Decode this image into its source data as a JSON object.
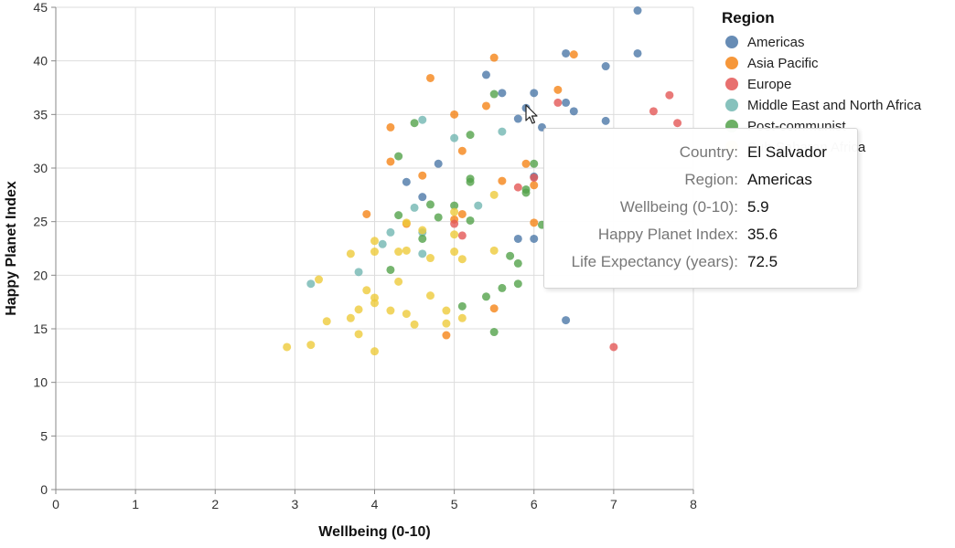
{
  "chart_data": {
    "type": "scatter",
    "xlabel": "Wellbeing (0-10)",
    "ylabel": "Happy Planet Index",
    "xlim": [
      0,
      8
    ],
    "ylim": [
      0,
      45
    ],
    "x_ticks": [
      0,
      1,
      2,
      3,
      4,
      5,
      6,
      7,
      8
    ],
    "y_ticks": [
      0,
      5,
      10,
      15,
      20,
      25,
      30,
      35,
      40,
      45
    ],
    "grid": true,
    "legend": {
      "title": "Region",
      "placement": "top-right",
      "entries": [
        {
          "name": "Americas",
          "color": "#4c78a8"
        },
        {
          "name": "Asia Pacific",
          "color": "#f58518"
        },
        {
          "name": "Europe",
          "color": "#e45756"
        },
        {
          "name": "Middle East and North Africa",
          "color": "#72b7b2"
        },
        {
          "name": "Post-communist",
          "color": "#54a24b"
        },
        {
          "name": "Sub Saharan Africa",
          "color": "#eeca3b"
        }
      ]
    },
    "series": [
      {
        "name": "Americas",
        "color": "#4c78a8",
        "points": [
          [
            7.3,
            44.7
          ],
          [
            7.3,
            40.7
          ],
          [
            6.4,
            40.7
          ],
          [
            6.9,
            39.5
          ],
          [
            5.4,
            38.7
          ],
          [
            5.6,
            37
          ],
          [
            6.0,
            37
          ],
          [
            6.4,
            36.1
          ],
          [
            6.5,
            35.3
          ],
          [
            5.9,
            35.6
          ],
          [
            5.8,
            34.6
          ],
          [
            6.1,
            33.8
          ],
          [
            6.9,
            34.4
          ],
          [
            4.8,
            30.4
          ],
          [
            4.4,
            28.7
          ],
          [
            4.6,
            27.3
          ],
          [
            6.0,
            29.2
          ],
          [
            5.8,
            23.4
          ],
          [
            6.0,
            23.4
          ],
          [
            6.4,
            15.8
          ]
        ]
      },
      {
        "name": "Asia Pacific",
        "color": "#f58518",
        "points": [
          [
            5.5,
            40.3
          ],
          [
            6.5,
            40.6
          ],
          [
            4.7,
            38.4
          ],
          [
            6.3,
            37.3
          ],
          [
            5.4,
            35.8
          ],
          [
            5.0,
            35.0
          ],
          [
            4.2,
            33.8
          ],
          [
            5.1,
            31.6
          ],
          [
            4.2,
            30.6
          ],
          [
            4.6,
            29.3
          ],
          [
            5.9,
            30.4
          ],
          [
            5.6,
            28.8
          ],
          [
            6.0,
            28.4
          ],
          [
            3.9,
            25.7
          ],
          [
            5.1,
            25.7
          ],
          [
            4.4,
            24.8
          ],
          [
            5.0,
            25.2
          ],
          [
            6.0,
            24.9
          ],
          [
            5.5,
            16.9
          ],
          [
            4.9,
            14.4
          ]
        ]
      },
      {
        "name": "Europe",
        "color": "#e45756",
        "points": [
          [
            7.7,
            36.8
          ],
          [
            7.5,
            35.3
          ],
          [
            7.8,
            34.2
          ],
          [
            6.3,
            36.1
          ],
          [
            5.8,
            28.2
          ],
          [
            6.0,
            29.1
          ],
          [
            5.0,
            24.8
          ],
          [
            5.1,
            23.7
          ],
          [
            7.0,
            13.3
          ]
        ]
      },
      {
        "name": "Middle East and North Africa",
        "color": "#72b7b2",
        "points": [
          [
            4.6,
            34.5
          ],
          [
            5.0,
            32.8
          ],
          [
            5.6,
            33.4
          ],
          [
            4.5,
            26.3
          ],
          [
            4.2,
            24.0
          ],
          [
            4.6,
            24.0
          ],
          [
            4.1,
            22.9
          ],
          [
            3.8,
            20.3
          ],
          [
            3.2,
            19.2
          ],
          [
            4.6,
            22.0
          ],
          [
            5.3,
            26.5
          ]
        ]
      },
      {
        "name": "Post-communist",
        "color": "#54a24b",
        "points": [
          [
            5.5,
            36.9
          ],
          [
            4.5,
            34.2
          ],
          [
            5.2,
            33.1
          ],
          [
            4.3,
            31.1
          ],
          [
            6.0,
            30.4
          ],
          [
            5.2,
            29.0
          ],
          [
            5.2,
            28.7
          ],
          [
            5.9,
            28.0
          ],
          [
            5.9,
            27.7
          ],
          [
            4.7,
            26.6
          ],
          [
            5.0,
            26.5
          ],
          [
            4.3,
            25.6
          ],
          [
            4.8,
            25.4
          ],
          [
            5.2,
            25.1
          ],
          [
            6.1,
            24.7
          ],
          [
            4.6,
            23.4
          ],
          [
            5.7,
            21.8
          ],
          [
            5.8,
            21.1
          ],
          [
            4.2,
            20.5
          ],
          [
            5.6,
            18.8
          ],
          [
            5.8,
            19.2
          ],
          [
            5.4,
            18.0
          ],
          [
            5.1,
            17.1
          ],
          [
            5.5,
            14.7
          ]
        ]
      },
      {
        "name": "Sub Saharan Africa",
        "color": "#eeca3b",
        "points": [
          [
            5.5,
            27.5
          ],
          [
            5.0,
            25.9
          ],
          [
            4.6,
            24.2
          ],
          [
            4.4,
            24.9
          ],
          [
            4.0,
            23.2
          ],
          [
            5.0,
            23.8
          ],
          [
            4.3,
            22.2
          ],
          [
            4.4,
            22.3
          ],
          [
            3.7,
            22.0
          ],
          [
            4.0,
            22.2
          ],
          [
            5.0,
            22.2
          ],
          [
            5.5,
            22.3
          ],
          [
            4.7,
            21.6
          ],
          [
            5.1,
            21.5
          ],
          [
            3.3,
            19.6
          ],
          [
            4.3,
            19.4
          ],
          [
            3.9,
            18.6
          ],
          [
            4.0,
            17.9
          ],
          [
            4.7,
            18.1
          ],
          [
            4.0,
            17.4
          ],
          [
            3.8,
            16.8
          ],
          [
            4.2,
            16.7
          ],
          [
            4.9,
            16.7
          ],
          [
            4.4,
            16.4
          ],
          [
            3.7,
            16.0
          ],
          [
            5.1,
            16.0
          ],
          [
            3.4,
            15.7
          ],
          [
            4.9,
            15.5
          ],
          [
            4.5,
            15.4
          ],
          [
            3.8,
            14.5
          ],
          [
            3.2,
            13.5
          ],
          [
            2.9,
            13.3
          ],
          [
            4.0,
            12.9
          ]
        ]
      }
    ]
  },
  "tooltip": {
    "rows": [
      {
        "key": "Country:",
        "value": "El Salvador"
      },
      {
        "key": "Region:",
        "value": "Americas"
      },
      {
        "key": "Wellbeing (0-10):",
        "value": "5.9"
      },
      {
        "key": "Happy Planet Index:",
        "value": "35.6"
      },
      {
        "key": "Life Expectancy (years):",
        "value": "72.5"
      }
    ]
  },
  "icons": {
    "cursor": "mouse-pointer-icon"
  }
}
